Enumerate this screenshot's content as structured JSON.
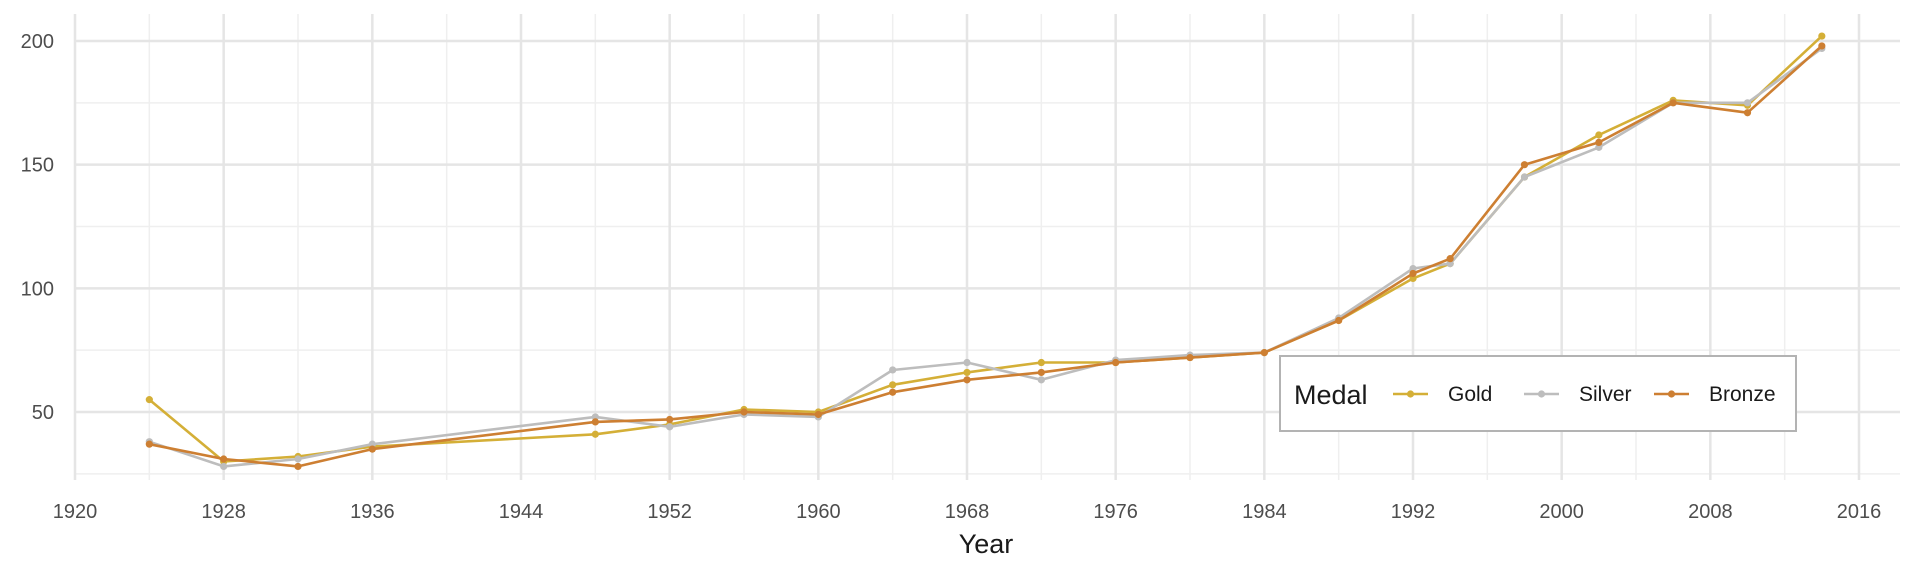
{
  "chart_data": {
    "type": "line",
    "xlabel": "Year",
    "ylabel": "",
    "xlim": [
      1920,
      2017
    ],
    "ylim": [
      20,
      210
    ],
    "x_ticks": [
      1920,
      1928,
      1936,
      1944,
      1952,
      1960,
      1968,
      1976,
      1984,
      1992,
      2000,
      2008,
      2016
    ],
    "y_ticks": [
      50,
      100,
      150,
      200
    ],
    "grid": true,
    "legend": {
      "title": "Medal",
      "placement": "bottom-right, inside plot, horizontal"
    },
    "x": [
      1924,
      1928,
      1932,
      1936,
      1948,
      1952,
      1956,
      1960,
      1964,
      1968,
      1972,
      1976,
      1980,
      1984,
      1988,
      1992,
      1994,
      1998,
      2002,
      2006,
      2010,
      2014
    ],
    "series": [
      {
        "name": "Gold",
        "color": "#D4AF37",
        "values": [
          55,
          30,
          32,
          36,
          41,
          45,
          51,
          50,
          61,
          66,
          70,
          70,
          72,
          74,
          87,
          104,
          110,
          145,
          162,
          176,
          174,
          202
        ]
      },
      {
        "name": "Silver",
        "color": "#BDBDBD",
        "values": [
          38,
          28,
          31,
          37,
          48,
          44,
          49,
          48,
          67,
          70,
          63,
          71,
          73,
          74,
          88,
          108,
          110,
          145,
          157,
          175,
          175,
          197
        ]
      },
      {
        "name": "Bronze",
        "color": "#CD7F32",
        "values": [
          37,
          31,
          28,
          35,
          46,
          47,
          50,
          49,
          58,
          63,
          66,
          70,
          72,
          74,
          87,
          106,
          112,
          150,
          159,
          175,
          171,
          198
        ]
      }
    ]
  }
}
